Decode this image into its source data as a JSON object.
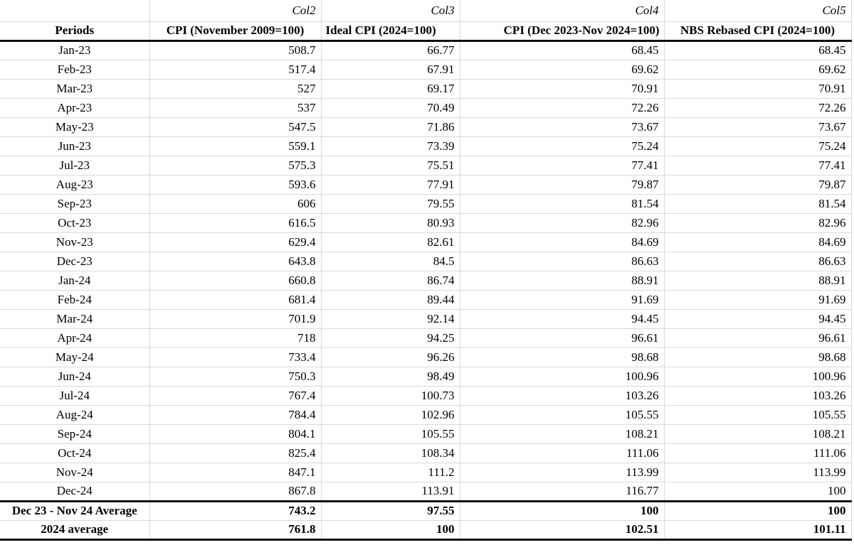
{
  "table": {
    "ref_row": {
      "corner": "",
      "labels": [
        "Col2",
        "Col3",
        "Col4",
        "Col5"
      ]
    },
    "headers": [
      "Periods",
      "CPI (November 2009=100)",
      "Ideal CPI (2024=100)",
      "CPI (Dec 2023-Nov 2024=100)",
      "NBS Rebased CPI (2024=100)"
    ],
    "rows": [
      [
        "Jan-23",
        "508.7",
        "66.77",
        "68.45",
        "68.45"
      ],
      [
        "Feb-23",
        "517.4",
        "67.91",
        "69.62",
        "69.62"
      ],
      [
        "Mar-23",
        "527",
        "69.17",
        "70.91",
        "70.91"
      ],
      [
        "Apr-23",
        "537",
        "70.49",
        "72.26",
        "72.26"
      ],
      [
        "May-23",
        "547.5",
        "71.86",
        "73.67",
        "73.67"
      ],
      [
        "Jun-23",
        "559.1",
        "73.39",
        "75.24",
        "75.24"
      ],
      [
        "Jul-23",
        "575.3",
        "75.51",
        "77.41",
        "77.41"
      ],
      [
        "Aug-23",
        "593.6",
        "77.91",
        "79.87",
        "79.87"
      ],
      [
        "Sep-23",
        "606",
        "79.55",
        "81.54",
        "81.54"
      ],
      [
        "Oct-23",
        "616.5",
        "80.93",
        "82.96",
        "82.96"
      ],
      [
        "Nov-23",
        "629.4",
        "82.61",
        "84.69",
        "84.69"
      ],
      [
        "Dec-23",
        "643.8",
        "84.5",
        "86.63",
        "86.63"
      ],
      [
        "Jan-24",
        "660.8",
        "86.74",
        "88.91",
        "88.91"
      ],
      [
        "Feb-24",
        "681.4",
        "89.44",
        "91.69",
        "91.69"
      ],
      [
        "Mar-24",
        "701.9",
        "92.14",
        "94.45",
        "94.45"
      ],
      [
        "Apr-24",
        "718",
        "94.25",
        "96.61",
        "96.61"
      ],
      [
        "May-24",
        "733.4",
        "96.26",
        "98.68",
        "98.68"
      ],
      [
        "Jun-24",
        "750.3",
        "98.49",
        "100.96",
        "100.96"
      ],
      [
        "Jul-24",
        "767.4",
        "100.73",
        "103.26",
        "103.26"
      ],
      [
        "Aug-24",
        "784.4",
        "102.96",
        "105.55",
        "105.55"
      ],
      [
        "Sep-24",
        "804.1",
        "105.55",
        "108.21",
        "108.21"
      ],
      [
        "Oct-24",
        "825.4",
        "108.34",
        "111.06",
        "111.06"
      ],
      [
        "Nov-24",
        "847.1",
        "111.2",
        "113.99",
        "113.99"
      ],
      [
        "Dec-24",
        "867.8",
        "113.91",
        "116.77",
        "100"
      ]
    ],
    "summary_rows": [
      [
        "Dec 23 - Nov 24 Average",
        "743.2",
        "97.55",
        "100",
        "100"
      ],
      [
        "2024 average",
        "761.8",
        "100",
        "102.51",
        "101.11"
      ]
    ]
  },
  "colors": {
    "grid_line": "#d9d9d9",
    "rule_line": "#0e0e0e",
    "background": "#ffffff",
    "text": "#000000"
  }
}
